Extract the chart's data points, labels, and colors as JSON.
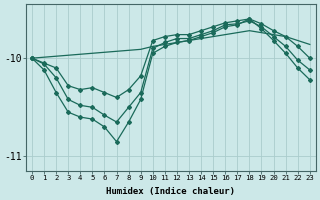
{
  "xlabel": "Humidex (Indice chaleur)",
  "bg_color": "#cce8e8",
  "grid_color": "#aacccc",
  "line_color": "#1a6a5a",
  "xlim": [
    -0.5,
    23.5
  ],
  "ylim": [
    -11.15,
    -9.45
  ],
  "yticks": [
    -11,
    -10
  ],
  "xticks": [
    0,
    1,
    2,
    3,
    4,
    5,
    6,
    7,
    8,
    9,
    10,
    11,
    12,
    13,
    14,
    15,
    16,
    17,
    18,
    19,
    20,
    21,
    22,
    23
  ],
  "series_straight": [
    -10.0,
    -9.99,
    -9.98,
    -9.97,
    -9.96,
    -9.95,
    -9.94,
    -9.93,
    -9.92,
    -9.91,
    -9.88,
    -9.86,
    -9.84,
    -9.82,
    -9.8,
    -9.78,
    -9.76,
    -9.74,
    -9.72,
    -9.74,
    -9.76,
    -9.78,
    -9.82,
    -9.86
  ],
  "series_top": [
    -10.0,
    -10.05,
    -10.1,
    -10.28,
    -10.32,
    -10.3,
    -10.35,
    -10.4,
    -10.32,
    -10.18,
    -9.82,
    -9.78,
    -9.76,
    -9.76,
    -9.72,
    -9.68,
    -9.64,
    -9.62,
    -9.6,
    -9.65,
    -9.72,
    -9.78,
    -9.88,
    -10.0
  ],
  "series_mid": [
    -10.0,
    -10.06,
    -10.2,
    -10.42,
    -10.48,
    -10.5,
    -10.58,
    -10.65,
    -10.5,
    -10.35,
    -9.9,
    -9.84,
    -9.8,
    -9.8,
    -9.76,
    -9.72,
    -9.66,
    -9.65,
    -9.62,
    -9.68,
    -9.78,
    -9.88,
    -10.02,
    -10.12
  ],
  "series_bottom": [
    -10.0,
    -10.12,
    -10.35,
    -10.55,
    -10.6,
    -10.62,
    -10.7,
    -10.85,
    -10.65,
    -10.42,
    -9.95,
    -9.88,
    -9.84,
    -9.82,
    -9.78,
    -9.74,
    -9.68,
    -9.66,
    -9.6,
    -9.7,
    -9.82,
    -9.95,
    -10.1,
    -10.22
  ]
}
